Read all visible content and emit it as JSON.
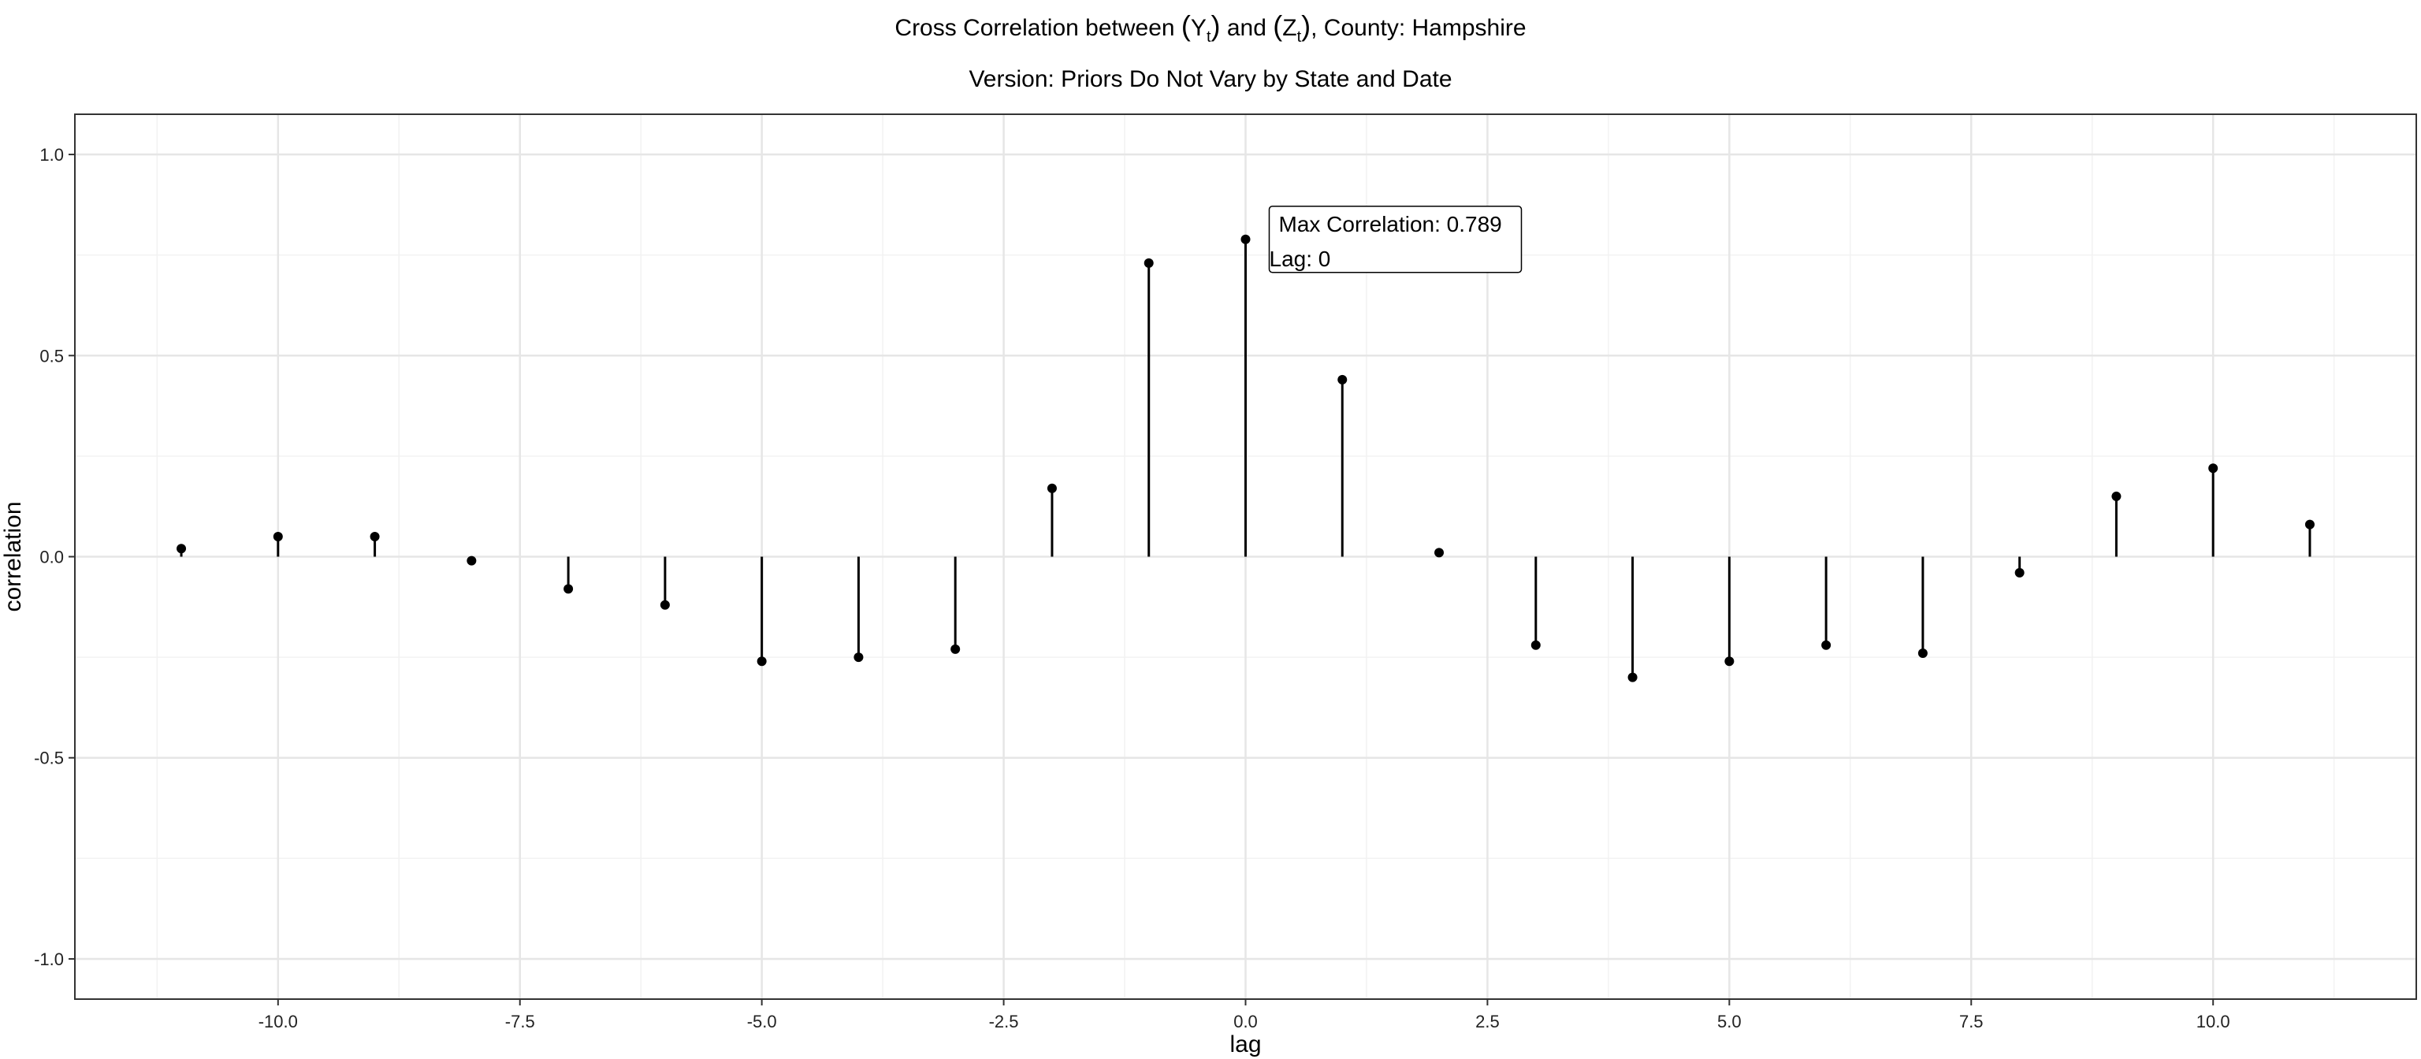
{
  "chart_data": {
    "type": "stem",
    "title_parts": {
      "before": "Cross Correlation between ",
      "y": "Y",
      "y_sub": "t",
      "middle": " and ",
      "z": "Z",
      "z_sub": "t",
      "after": ", County: Hampshire"
    },
    "subtitle": "Version: Priors Do Not Vary by State and Date",
    "xlabel": "lag",
    "ylabel": "correlation",
    "xlim": [
      -12.1,
      12.1
    ],
    "ylim": [
      -1.1,
      1.1
    ],
    "x_ticks": [
      -10.0,
      -7.5,
      -5.0,
      -2.5,
      0.0,
      2.5,
      5.0,
      7.5,
      10.0
    ],
    "x_tick_labels": [
      "-10.0",
      "-7.5",
      "-5.0",
      "-2.5",
      "0.0",
      "2.5",
      "5.0",
      "7.5",
      "10.0"
    ],
    "y_ticks": [
      -1.0,
      -0.5,
      0.0,
      0.5,
      1.0
    ],
    "y_tick_labels": [
      "-1.0",
      "-0.5",
      "0.0",
      "0.5",
      "1.0"
    ],
    "grid": true,
    "x": [
      -11,
      -10,
      -9,
      -8,
      -7,
      -6,
      -5,
      -4,
      -3,
      -2,
      -1,
      0,
      1,
      2,
      3,
      4,
      5,
      6,
      7,
      8,
      9,
      10,
      11
    ],
    "values": [
      0.02,
      0.05,
      0.05,
      -0.01,
      -0.08,
      -0.12,
      -0.26,
      -0.25,
      -0.23,
      0.17,
      0.73,
      0.789,
      0.44,
      0.01,
      -0.22,
      -0.3,
      -0.26,
      -0.22,
      -0.24,
      -0.04,
      0.15,
      0.22,
      0.08
    ],
    "annotation": {
      "line1": "Max Correlation: 0.789",
      "line2": "Lag: 0",
      "x": 0,
      "y": 0.789
    }
  }
}
